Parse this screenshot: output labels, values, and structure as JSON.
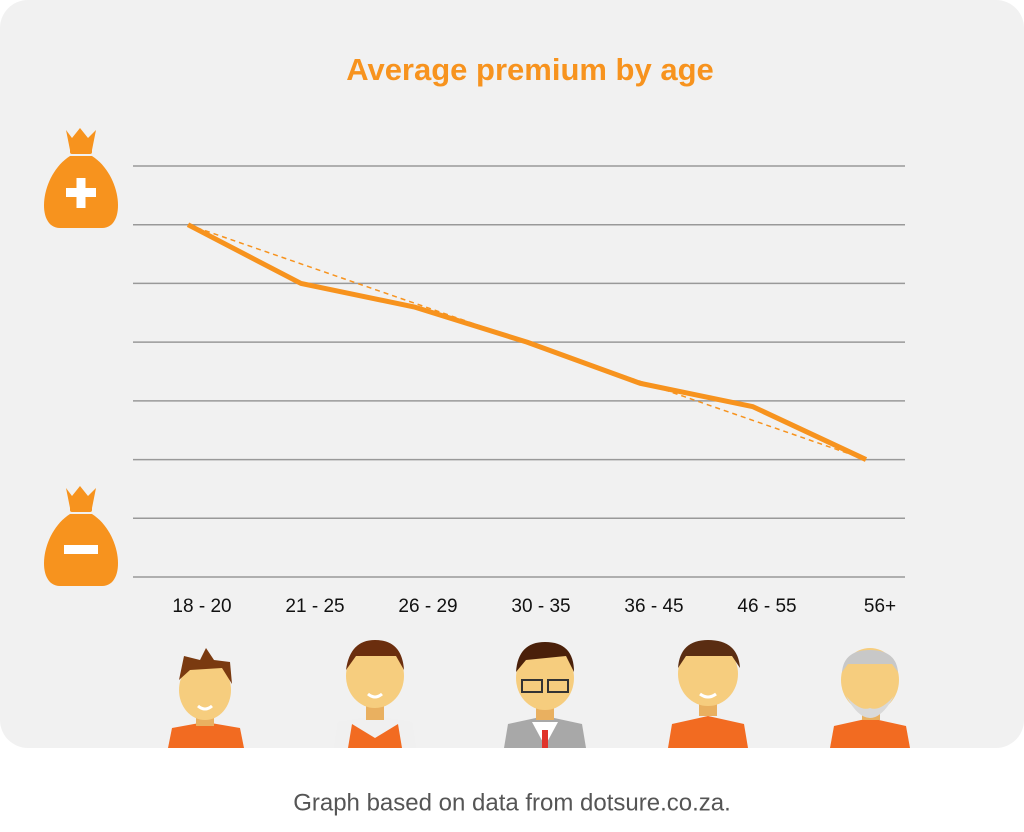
{
  "chart_data": {
    "type": "line",
    "title": "Average premium by age",
    "categories": [
      "18 - 20",
      "21 - 25",
      "26 - 29",
      "30 - 35",
      "36 - 45",
      "46 - 55",
      "56+"
    ],
    "series": [
      {
        "color": "#f7931e",
        "values": [
          6,
          5,
          4.6,
          4,
          3.3,
          2.9,
          2
        ]
      }
    ],
    "ylim": [
      0,
      7
    ],
    "yticks": [
      0,
      1,
      2,
      3,
      4,
      5,
      6,
      7
    ],
    "ytick_labels": false,
    "grid": true,
    "trendline": {
      "color": "#f7931e",
      "style": "dashed"
    },
    "source": "Graph based on data from dotsure.co.za."
  }
}
